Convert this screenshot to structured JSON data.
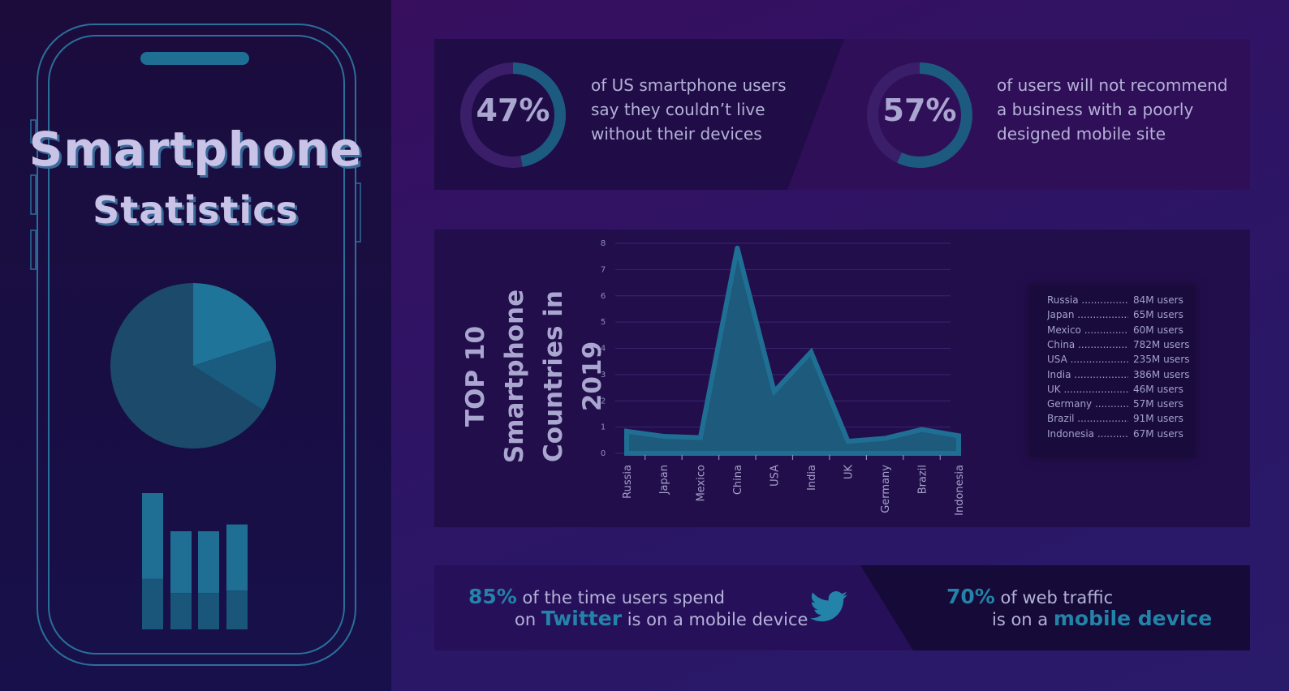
{
  "colors": {
    "accent": "#2383a8",
    "teal_dark": "#1c4e72",
    "donut_track": "#3b1e6a",
    "area_fill": "#1d5a7c",
    "text": "#b4b2d8"
  },
  "header": {
    "title_line1": "Smartphone",
    "title_line2": "Statistics"
  },
  "stats": {
    "stat1": {
      "percent": "47%",
      "value": 47,
      "line1": "of US smartphone users",
      "line2": "say they couldn’t live",
      "line3": "without their devices"
    },
    "stat2": {
      "percent": "57%",
      "value": 57,
      "line1": "of users will not recommend",
      "line2": "a business with a poorly",
      "line3": "designed mobile site"
    }
  },
  "bottom": {
    "left_pct": "85%",
    "left_text1": "of the time users spend",
    "left_on": "on",
    "left_twitter": "Twitter",
    "left_text2": "is on a mobile device",
    "right_pct": "70%",
    "right_text1": "of web traffic",
    "right_text2": "is on a",
    "right_highlight": "mobile device",
    "icon": "twitter-bird-icon"
  },
  "phone": {
    "pie_values": [
      66,
      20,
      14
    ],
    "bar_values": [
      1.0,
      0.72,
      0.72,
      0.77
    ]
  },
  "chart_data": {
    "type": "area",
    "title": "TOP 10 Smartphone Countries in 2019",
    "categories": [
      "Russia",
      "Japan",
      "Mexico",
      "China",
      "USA",
      "India",
      "UK",
      "Germany",
      "Brazil",
      "Indonesia"
    ],
    "values": [
      0.84,
      0.65,
      0.6,
      7.82,
      2.35,
      3.86,
      0.46,
      0.57,
      0.91,
      0.67
    ],
    "ylim": [
      0,
      8
    ],
    "yticks": [
      0,
      1,
      2,
      3,
      4,
      5,
      6,
      7,
      8
    ],
    "grid": true,
    "legend": [
      {
        "name": "Russia",
        "value": "84M users"
      },
      {
        "name": "Japan",
        "value": "65M users"
      },
      {
        "name": "Mexico",
        "value": "60M users"
      },
      {
        "name": "China",
        "value": "782M users"
      },
      {
        "name": "USA",
        "value": "235M users"
      },
      {
        "name": "India",
        "value": "386M users"
      },
      {
        "name": "UK",
        "value": "46M users"
      },
      {
        "name": "Germany",
        "value": "57M users"
      },
      {
        "name": "Brazil",
        "value": "91M users"
      },
      {
        "name": "Indonesia",
        "value": "67M users"
      }
    ],
    "legend_position": "right"
  }
}
